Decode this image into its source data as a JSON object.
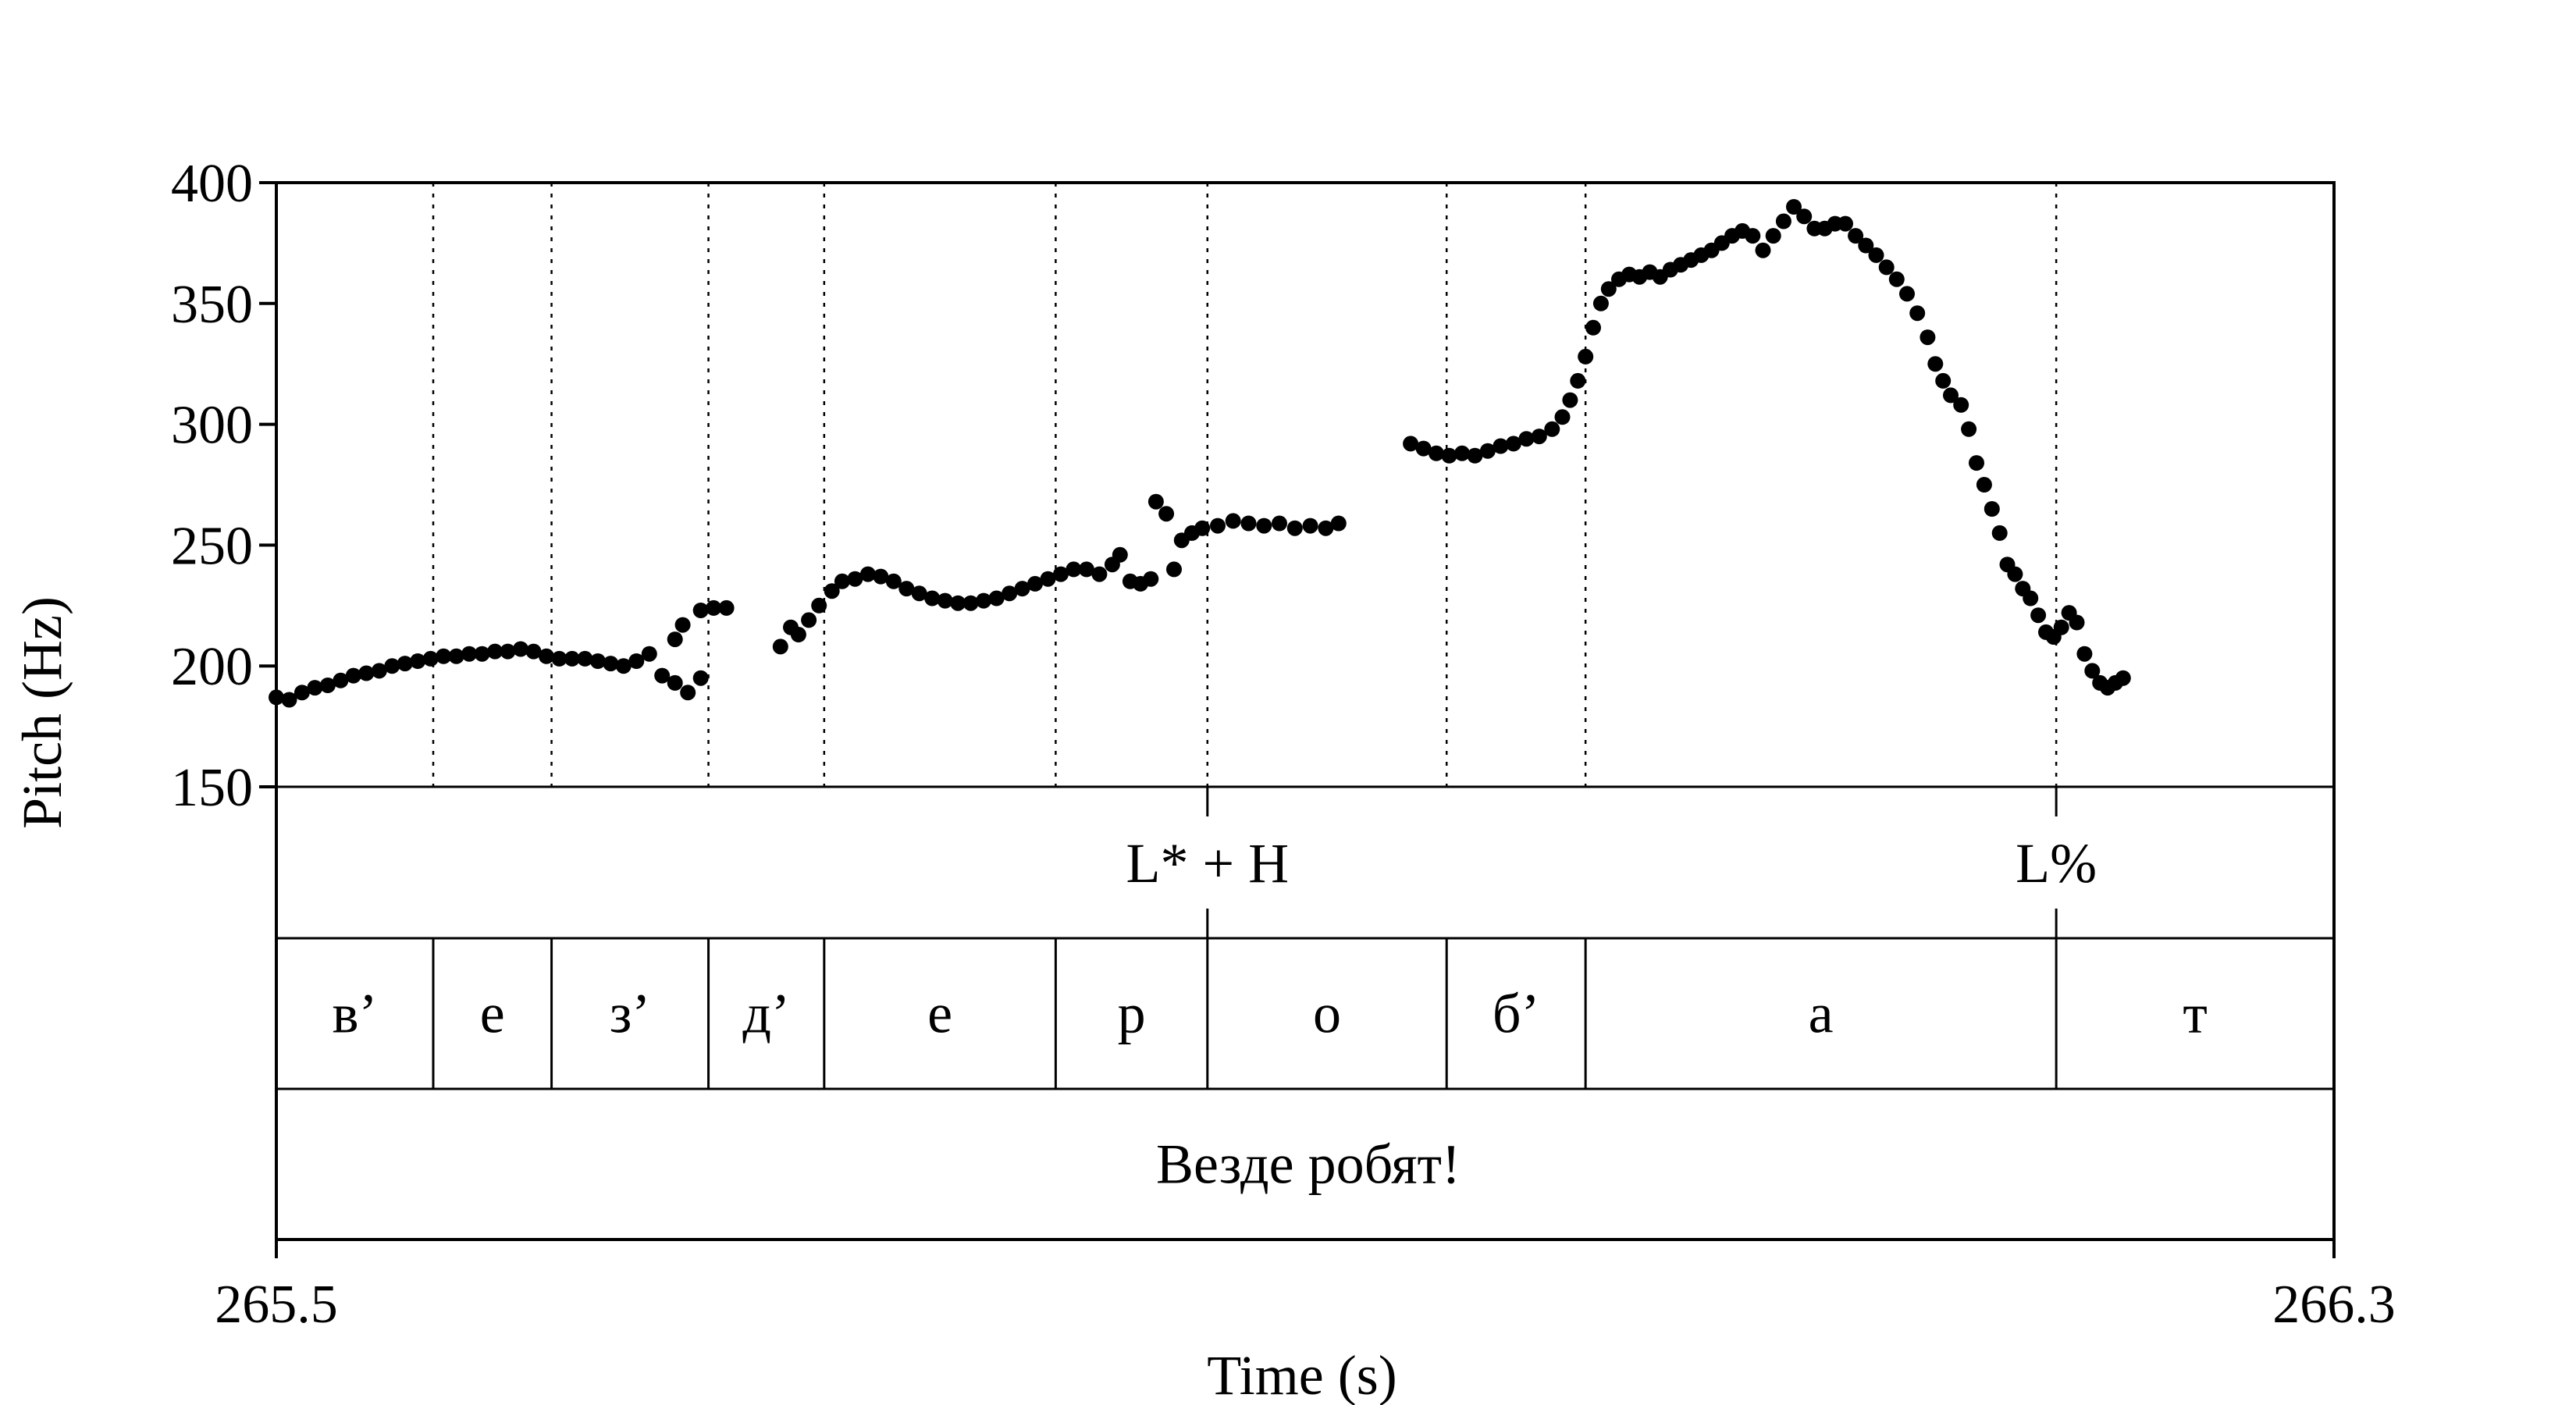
{
  "chart_data": {
    "type": "scatter",
    "title": "",
    "xlabel": "Time (s)",
    "ylabel": "Pitch (Hz)",
    "xlim": [
      265.5,
      266.3
    ],
    "ylim": [
      150,
      400
    ],
    "x_tick_labels": [
      "265.5",
      "266.3"
    ],
    "y_tick_labels": [
      "150",
      "200",
      "250",
      "300",
      "350",
      "400"
    ],
    "grid": false,
    "colors": {
      "points": "#000000",
      "lines": "#000000",
      "background": "#ffffff"
    },
    "segment_boundaries": [
      265.5,
      265.561,
      265.607,
      265.668,
      265.713,
      265.803,
      265.862,
      265.955,
      266.009,
      266.192,
      266.3
    ],
    "tones": [
      {
        "time": 265.862,
        "label": "L* + H"
      },
      {
        "time": 266.192,
        "label": "L%"
      }
    ],
    "segments": [
      {
        "start": 265.5,
        "end": 265.561,
        "label": "в’"
      },
      {
        "start": 265.561,
        "end": 265.607,
        "label": "е"
      },
      {
        "start": 265.607,
        "end": 265.668,
        "label": "з’"
      },
      {
        "start": 265.668,
        "end": 265.713,
        "label": "д’"
      },
      {
        "start": 265.713,
        "end": 265.803,
        "label": "е"
      },
      {
        "start": 265.803,
        "end": 265.862,
        "label": "р"
      },
      {
        "start": 265.862,
        "end": 265.955,
        "label": "о"
      },
      {
        "start": 265.955,
        "end": 266.009,
        "label": "б’"
      },
      {
        "start": 266.009,
        "end": 266.192,
        "label": "а"
      },
      {
        "start": 266.192,
        "end": 266.3,
        "label": "т"
      }
    ],
    "phrase": {
      "start": 265.5,
      "end": 266.3,
      "label": "Везде робят!"
    },
    "pitch_contour": [
      [
        265.5,
        187
      ],
      [
        265.505,
        186
      ],
      [
        265.51,
        189
      ],
      [
        265.515,
        191
      ],
      [
        265.52,
        192
      ],
      [
        265.525,
        194
      ],
      [
        265.53,
        196
      ],
      [
        265.535,
        197
      ],
      [
        265.54,
        198
      ],
      [
        265.545,
        200
      ],
      [
        265.55,
        201
      ],
      [
        265.555,
        202
      ],
      [
        265.56,
        203
      ],
      [
        265.565,
        204
      ],
      [
        265.57,
        204
      ],
      [
        265.575,
        205
      ],
      [
        265.58,
        205
      ],
      [
        265.585,
        206
      ],
      [
        265.59,
        206
      ],
      [
        265.595,
        207
      ],
      [
        265.6,
        206
      ],
      [
        265.605,
        204
      ],
      [
        265.61,
        203
      ],
      [
        265.615,
        203
      ],
      [
        265.62,
        203
      ],
      [
        265.625,
        202
      ],
      [
        265.63,
        201
      ],
      [
        265.635,
        200
      ],
      [
        265.64,
        202
      ],
      [
        265.645,
        205
      ],
      [
        265.65,
        196
      ],
      [
        265.655,
        193
      ],
      [
        265.66,
        189
      ],
      [
        265.665,
        195
      ],
      [
        265.655,
        211
      ],
      [
        265.658,
        217
      ],
      [
        265.665,
        223
      ],
      [
        265.67,
        224
      ],
      [
        265.675,
        224
      ],
      [
        265.696,
        208
      ],
      [
        265.7,
        216
      ],
      [
        265.703,
        213
      ],
      [
        265.707,
        219
      ],
      [
        265.711,
        225
      ],
      [
        265.716,
        231
      ],
      [
        265.72,
        235
      ],
      [
        265.725,
        236
      ],
      [
        265.73,
        238
      ],
      [
        265.735,
        237
      ],
      [
        265.74,
        235
      ],
      [
        265.745,
        232
      ],
      [
        265.75,
        230
      ],
      [
        265.755,
        228
      ],
      [
        265.76,
        227
      ],
      [
        265.765,
        226
      ],
      [
        265.77,
        226
      ],
      [
        265.775,
        227
      ],
      [
        265.78,
        228
      ],
      [
        265.785,
        230
      ],
      [
        265.79,
        232
      ],
      [
        265.795,
        234
      ],
      [
        265.8,
        236
      ],
      [
        265.805,
        238
      ],
      [
        265.81,
        240
      ],
      [
        265.815,
        240
      ],
      [
        265.82,
        238
      ],
      [
        265.825,
        242
      ],
      [
        265.828,
        246
      ],
      [
        265.832,
        235
      ],
      [
        265.836,
        234
      ],
      [
        265.84,
        236
      ],
      [
        265.842,
        268
      ],
      [
        265.846,
        263
      ],
      [
        265.849,
        240
      ],
      [
        265.852,
        252
      ],
      [
        265.856,
        255
      ],
      [
        265.86,
        257
      ],
      [
        265.866,
        258
      ],
      [
        265.872,
        260
      ],
      [
        265.878,
        259
      ],
      [
        265.884,
        258
      ],
      [
        265.89,
        259
      ],
      [
        265.896,
        257
      ],
      [
        265.902,
        258
      ],
      [
        265.908,
        257
      ],
      [
        265.913,
        259
      ],
      [
        265.941,
        292
      ],
      [
        265.946,
        290
      ],
      [
        265.951,
        288
      ],
      [
        265.956,
        287
      ],
      [
        265.961,
        288
      ],
      [
        265.966,
        287
      ],
      [
        265.971,
        289
      ],
      [
        265.976,
        291
      ],
      [
        265.981,
        292
      ],
      [
        265.986,
        294
      ],
      [
        265.991,
        295
      ],
      [
        265.996,
        298
      ],
      [
        266.0,
        303
      ],
      [
        266.003,
        310
      ],
      [
        266.006,
        318
      ],
      [
        266.009,
        328
      ],
      [
        266.012,
        340
      ],
      [
        266.015,
        350
      ],
      [
        266.018,
        356
      ],
      [
        266.022,
        360
      ],
      [
        266.026,
        362
      ],
      [
        266.03,
        361
      ],
      [
        266.034,
        363
      ],
      [
        266.038,
        361
      ],
      [
        266.042,
        364
      ],
      [
        266.046,
        366
      ],
      [
        266.05,
        368
      ],
      [
        266.054,
        370
      ],
      [
        266.058,
        372
      ],
      [
        266.062,
        375
      ],
      [
        266.066,
        378
      ],
      [
        266.07,
        380
      ],
      [
        266.074,
        378
      ],
      [
        266.078,
        372
      ],
      [
        266.082,
        378
      ],
      [
        266.086,
        384
      ],
      [
        266.09,
        390
      ],
      [
        266.094,
        386
      ],
      [
        266.098,
        381
      ],
      [
        266.102,
        381
      ],
      [
        266.106,
        383
      ],
      [
        266.11,
        383
      ],
      [
        266.114,
        378
      ],
      [
        266.118,
        374
      ],
      [
        266.122,
        370
      ],
      [
        266.126,
        365
      ],
      [
        266.13,
        360
      ],
      [
        266.134,
        354
      ],
      [
        266.138,
        346
      ],
      [
        266.142,
        336
      ],
      [
        266.145,
        325
      ],
      [
        266.148,
        318
      ],
      [
        266.151,
        312
      ],
      [
        266.155,
        308
      ],
      [
        266.158,
        298
      ],
      [
        266.161,
        284
      ],
      [
        266.164,
        275
      ],
      [
        266.167,
        265
      ],
      [
        266.17,
        255
      ],
      [
        266.173,
        242
      ],
      [
        266.176,
        238
      ],
      [
        266.179,
        232
      ],
      [
        266.182,
        228
      ],
      [
        266.185,
        221
      ],
      [
        266.188,
        214
      ],
      [
        266.191,
        212
      ],
      [
        266.194,
        216
      ],
      [
        266.197,
        222
      ],
      [
        266.2,
        218
      ],
      [
        266.203,
        205
      ],
      [
        266.206,
        198
      ],
      [
        266.209,
        193
      ],
      [
        266.212,
        191
      ],
      [
        266.215,
        193
      ],
      [
        266.218,
        195
      ]
    ]
  }
}
